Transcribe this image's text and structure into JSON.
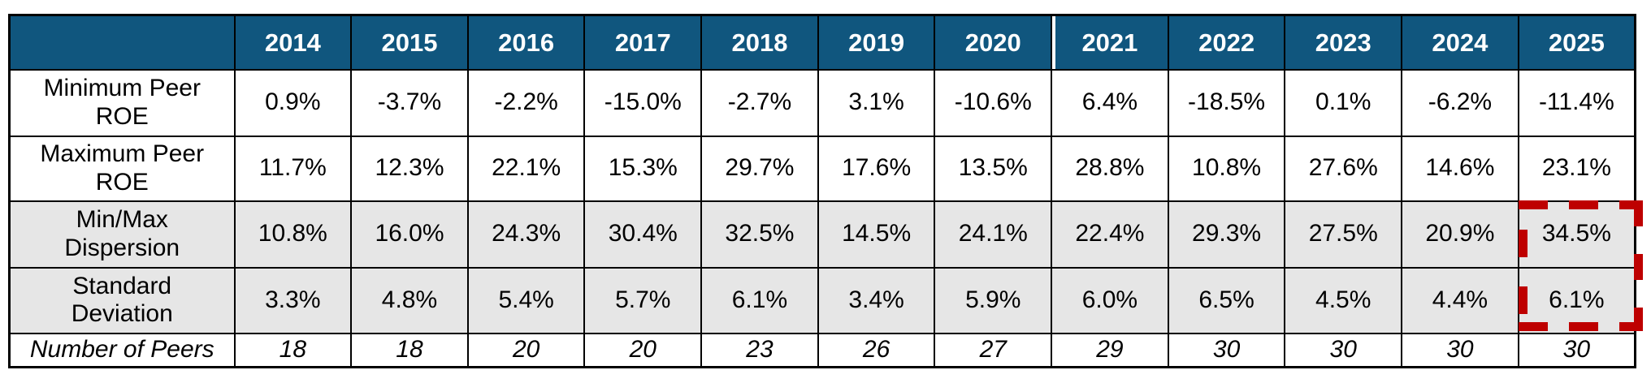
{
  "table": {
    "columns": [
      "2014",
      "2015",
      "2016",
      "2017",
      "2018",
      "2019",
      "2020",
      "2021",
      "2022",
      "2023",
      "2024",
      "2025"
    ],
    "split_before_column": "2021",
    "rows": [
      {
        "label": "Minimum Peer\nROE",
        "values": [
          "0.9%",
          "-3.7%",
          "-2.2%",
          "-15.0%",
          "-2.7%",
          "3.1%",
          "-10.6%",
          "6.4%",
          "-18.5%",
          "0.1%",
          "-6.2%",
          "-11.4%"
        ],
        "shaded": false,
        "italic": false
      },
      {
        "label": "Maximum Peer\nROE",
        "values": [
          "11.7%",
          "12.3%",
          "22.1%",
          "15.3%",
          "29.7%",
          "17.6%",
          "13.5%",
          "28.8%",
          "10.8%",
          "27.6%",
          "14.6%",
          "23.1%"
        ],
        "shaded": false,
        "italic": false
      },
      {
        "label": "Min/Max\nDispersion",
        "values": [
          "10.8%",
          "16.0%",
          "24.3%",
          "30.4%",
          "32.5%",
          "14.5%",
          "24.1%",
          "22.4%",
          "29.3%",
          "27.5%",
          "20.9%",
          "34.5%"
        ],
        "shaded": true,
        "italic": false
      },
      {
        "label": "Standard\nDeviation",
        "values": [
          "3.3%",
          "4.8%",
          "5.4%",
          "5.7%",
          "6.1%",
          "3.4%",
          "5.9%",
          "6.0%",
          "6.5%",
          "4.5%",
          "4.4%",
          "6.1%"
        ],
        "shaded": true,
        "italic": false
      },
      {
        "label": "Number of Peers",
        "values": [
          "18",
          "18",
          "20",
          "20",
          "23",
          "26",
          "27",
          "29",
          "30",
          "30",
          "30",
          "30"
        ],
        "shaded": false,
        "italic": true
      }
    ],
    "colors": {
      "header_bg": "#10567E",
      "header_text": "#FFFFFF",
      "shaded_row_bg": "#E6E6E6",
      "body_text": "#000000",
      "border": "#000000",
      "highlight_dash": "#BE0000"
    },
    "highlight": {
      "column": "2025",
      "rows": [
        "Min/Max Dispersion",
        "Standard Deviation"
      ],
      "style": "red-dashed-box"
    }
  }
}
